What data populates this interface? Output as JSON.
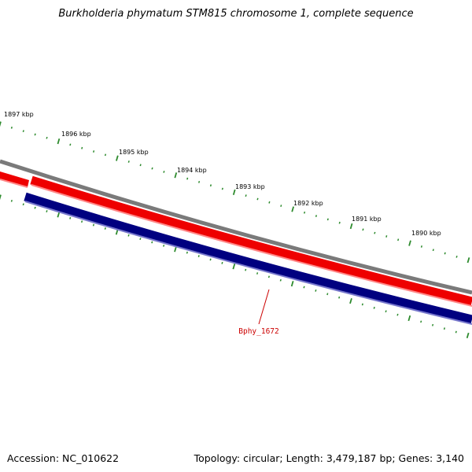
{
  "title": "Burkholderia phymatum STM815 chromosome 1, complete sequence",
  "accession_text": "Accession: NC_010622",
  "summary_text": "Topology: circular; Length: 3,479,187 bp; Genes: 3,140",
  "kbp_ticks": [
    "1897 kbp",
    "1896 kbp",
    "1895 kbp",
    "1894 kbp",
    "1893 kbp",
    "1892 kbp",
    "1891 kbp",
    "1890 kbp"
  ],
  "gene_label": "Bphy_1672",
  "colors": {
    "backbone": "#7a7a7a",
    "forward_gene": "#ee0000",
    "forward_gene_light": "#ff8888",
    "reverse_gene": "#000080",
    "reverse_gene_light": "#7777cc",
    "tick": "#2e8b2e",
    "gene_label": "#cc0000"
  }
}
